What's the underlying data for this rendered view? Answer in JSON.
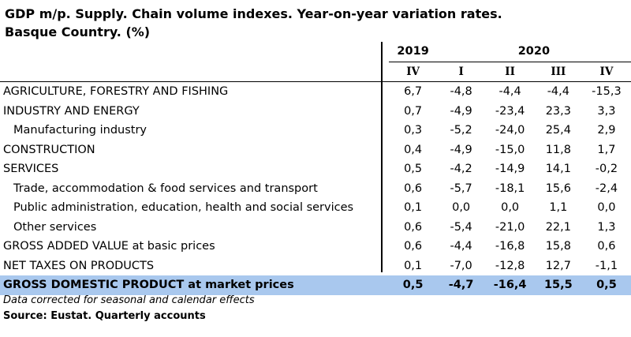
{
  "title_line1": "GDP m/p. Supply. Chain volume indexes. Year-on-year variation rates.",
  "title_line2": "Basque Country. (%)",
  "header": {
    "year2019": "2019",
    "year2020": "2020",
    "q2019": "IV",
    "q1": "I",
    "q2": "II",
    "q3": "III",
    "q4": "IV"
  },
  "rows": [
    {
      "label": "AGRICULTURE, FORESTRY AND FISHING",
      "v2019": "6,7",
      "q1": "-4,8",
      "q2": "-4,4",
      "q3": "-4,4",
      "q4": "-15,3"
    },
    {
      "label": "INDUSTRY AND ENERGY",
      "v2019": "0,7",
      "q1": "-4,9",
      "q2": "-23,4",
      "q3": "23,3",
      "q4": "3,3"
    },
    {
      "label": "Manufacturing industry",
      "v2019": "0,3",
      "q1": "-5,2",
      "q2": "-24,0",
      "q3": "25,4",
      "q4": "2,9"
    },
    {
      "label": "CONSTRUCTION",
      "v2019": "0,4",
      "q1": "-4,9",
      "q2": "-15,0",
      "q3": "11,8",
      "q4": "1,7"
    },
    {
      "label": "SERVICES",
      "v2019": "0,5",
      "q1": "-4,2",
      "q2": "-14,9",
      "q3": "14,1",
      "q4": "-0,2"
    },
    {
      "label": "Trade, accommodation & food services and transport",
      "v2019": "0,6",
      "q1": "-5,7",
      "q2": "-18,1",
      "q3": "15,6",
      "q4": "-2,4"
    },
    {
      "label": "Public administration, education, health and social services",
      "v2019": "0,1",
      "q1": "0,0",
      "q2": "0,0",
      "q3": "1,1",
      "q4": "0,0"
    },
    {
      "label": "Other services",
      "v2019": "0,6",
      "q1": "-5,4",
      "q2": "-21,0",
      "q3": "22,1",
      "q4": "1,3"
    },
    {
      "label": "GROSS ADDED VALUE at basic prices",
      "v2019": "0,6",
      "q1": "-4,4",
      "q2": "-16,8",
      "q3": "15,8",
      "q4": "0,6"
    },
    {
      "label": "NET TAXES ON PRODUCTS",
      "v2019": "0,1",
      "q1": "-7,0",
      "q2": "-12,8",
      "q3": "12,7",
      "q4": "-1,1"
    }
  ],
  "total": {
    "label": "GROSS DOMESTIC PRODUCT at market prices",
    "v2019": "0,5",
    "q1": "-4,7",
    "q2": "-16,4",
    "q3": "15,5",
    "q4": "0,5"
  },
  "footnote": "Data corrected for seasonal and calendar effects",
  "source": "Source: Eustat. Quarterly accounts",
  "colors": {
    "total_row_bg": "#a9c8ee"
  }
}
